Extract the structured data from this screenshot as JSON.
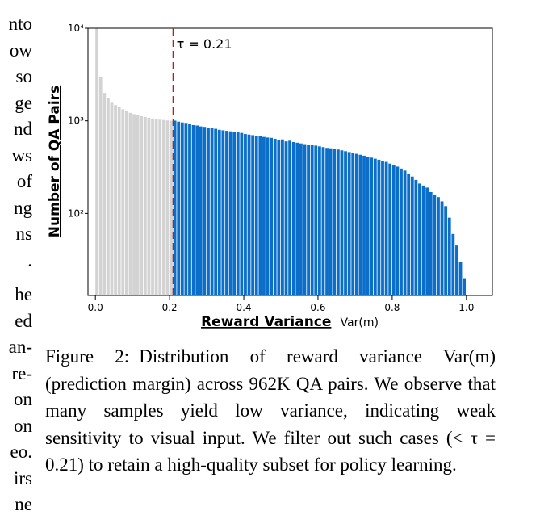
{
  "left_column_fragments": [
    "nto",
    "ow",
    "so",
    "ge",
    "nd",
    "ws",
    "of",
    "ng",
    "ns",
    ".",
    "he",
    "ed",
    "an-",
    "re-",
    "on",
    "on",
    "eo.",
    "irs",
    "ne"
  ],
  "chart_data": {
    "type": "bar",
    "xlabel": "Reward Variance",
    "xlabel_suffix": "Var(m)",
    "ylabel": "Number of QA Pairs",
    "xlim": [
      -0.02,
      1.07
    ],
    "ylim": [
      13,
      10000
    ],
    "yscale": "log",
    "xticks": [
      0.0,
      0.2,
      0.4,
      0.6,
      0.8,
      1.0
    ],
    "xtick_labels": [
      "0.0",
      "0.2",
      "0.4",
      "0.6",
      "0.8",
      "1.0"
    ],
    "yticks": [
      100,
      1000,
      10000
    ],
    "ytick_labels": [
      "10²",
      "10³",
      "10⁴"
    ],
    "threshold": {
      "value": 0.21,
      "label": "τ = 0.21",
      "color": "#b22222"
    },
    "colors": {
      "below": "#d3d3d3",
      "above": "#0b6fc9"
    },
    "bin_width": 0.01,
    "bins_start": 0.0,
    "values": [
      10000,
      3000,
      2000,
      1750,
      1600,
      1480,
      1400,
      1330,
      1280,
      1220,
      1180,
      1150,
      1120,
      1100,
      1080,
      1060,
      1050,
      1030,
      1020,
      1010,
      1000,
      1005,
      980,
      960,
      950,
      930,
      900,
      890,
      870,
      860,
      840,
      830,
      820,
      800,
      790,
      780,
      770,
      760,
      750,
      740,
      720,
      710,
      700,
      690,
      680,
      670,
      660,
      655,
      640,
      620,
      630,
      600,
      610,
      590,
      580,
      570,
      560,
      550,
      545,
      540,
      530,
      520,
      510,
      505,
      500,
      490,
      480,
      470,
      460,
      450,
      440,
      430,
      420,
      410,
      400,
      390,
      380,
      370,
      360,
      345,
      330,
      320,
      305,
      290,
      270,
      250,
      230,
      210,
      200,
      190,
      170,
      160,
      150,
      135,
      120,
      90,
      60,
      45,
      30,
      20
    ]
  },
  "caption": {
    "label": "Figure 2:",
    "text": "Distribution of reward variance Var(m) (prediction margin) across 962K QA pairs. We observe that many samples yield low variance, indicating weak sensitivity to visual input. We filter out such cases (< τ = 0.21) to retain a high-quality subset for policy learning."
  }
}
